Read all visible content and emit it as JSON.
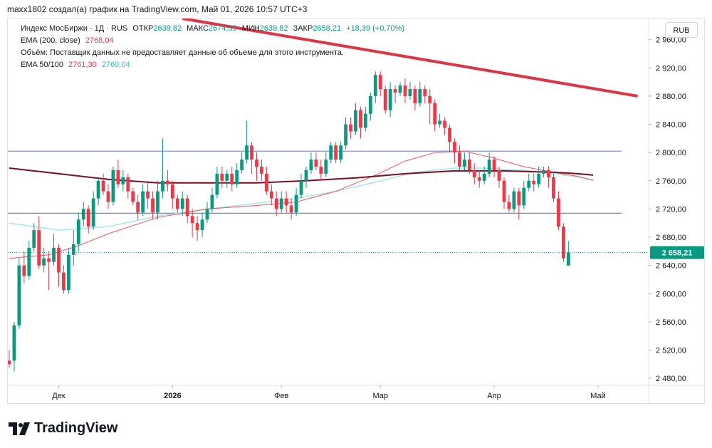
{
  "header": {
    "author_line": "maxx1802 создал(а) график на TradingView.com, Май 01, 2026 10:57 UTC+3"
  },
  "legend": {
    "symbol": "Индекс МосБиржи · 1Д · RUS",
    "open_label": "ОТКР",
    "open_value": "2639,82",
    "high_label": "МАКС",
    "high_value": "2674,59",
    "low_label": "МИН",
    "low_value": "2639,82",
    "close_label": "ЗАКР",
    "close_value": "2658,21",
    "change": "+18,39 (+0,70%)",
    "ema200_label": "EMA (200, close)",
    "ema200_value": "2768,04",
    "volume_note": "Объём: Поставщик данных не предоставляет данные об объеме для этого инструмента.",
    "ema50100_label": "EMA 50/100",
    "ema50_value": "2761,30",
    "ema100_value": "2760,04"
  },
  "currency_button": "RUB",
  "logo_text": "TradingView",
  "colors": {
    "up": "#089981",
    "down": "#f23645",
    "ema200": "#7b0d1e",
    "ema50": "#f7525f",
    "ema100": "#9fe6ee",
    "level_line": "#6f87c9",
    "trend_line": "#dc3545",
    "price_label_bg": "#089981"
  },
  "chart_data": {
    "type": "candlestick",
    "y_axis": {
      "min": 2470,
      "max": 2990,
      "side": "right",
      "ticks": [
        2480,
        2520,
        2560,
        2600,
        2640,
        2680,
        2720,
        2760,
        2800,
        2840,
        2880,
        2920,
        2960
      ],
      "tick_labels": [
        "2 480,00",
        "2 520,00",
        "2 560,00",
        "2 600,00",
        "2 640,00",
        "2 680,00",
        "2 720,00",
        "2 760,00",
        "2 800,00",
        "2 840,00",
        "2 880,00",
        "2 920,00",
        "2 960,00"
      ]
    },
    "x_axis": {
      "labels": [
        {
          "text": "Дек",
          "index": 10
        },
        {
          "text": "2026",
          "index": 33
        },
        {
          "text": "Фев",
          "index": 55
        },
        {
          "text": "Мар",
          "index": 75
        },
        {
          "text": "Апр",
          "index": 98
        },
        {
          "text": "Май",
          "index": 119
        }
      ],
      "total_slots": 127
    },
    "last_price_label": "2 658,21",
    "last_price": 2658.21,
    "horizontal_levels": [
      2802,
      2714
    ],
    "trend_line": {
      "start": {
        "index": 35,
        "price": 2990
      },
      "end": {
        "index": 127,
        "price": 2880
      }
    },
    "candles": [
      [
        2505,
        2500,
        2520,
        2495
      ],
      [
        2505,
        2555,
        2560,
        2490
      ],
      [
        2555,
        2640,
        2650,
        2550
      ],
      [
        2640,
        2625,
        2660,
        2615
      ],
      [
        2625,
        2665,
        2675,
        2620
      ],
      [
        2665,
        2690,
        2700,
        2660
      ],
      [
        2690,
        2640,
        2710,
        2635
      ],
      [
        2640,
        2650,
        2665,
        2630
      ],
      [
        2650,
        2645,
        2660,
        2605
      ],
      [
        2645,
        2665,
        2685,
        2640
      ],
      [
        2665,
        2630,
        2670,
        2610
      ],
      [
        2630,
        2605,
        2640,
        2600
      ],
      [
        2605,
        2655,
        2665,
        2600
      ],
      [
        2655,
        2670,
        2690,
        2640
      ],
      [
        2670,
        2705,
        2715,
        2660
      ],
      [
        2705,
        2720,
        2730,
        2695
      ],
      [
        2720,
        2695,
        2725,
        2685
      ],
      [
        2695,
        2735,
        2745,
        2690
      ],
      [
        2735,
        2760,
        2765,
        2725
      ],
      [
        2760,
        2745,
        2770,
        2740
      ],
      [
        2745,
        2730,
        2755,
        2720
      ],
      [
        2730,
        2775,
        2780,
        2725
      ],
      [
        2775,
        2755,
        2790,
        2750
      ],
      [
        2755,
        2765,
        2775,
        2745
      ],
      [
        2765,
        2745,
        2770,
        2735
      ],
      [
        2745,
        2730,
        2750,
        2725
      ],
      [
        2730,
        2715,
        2740,
        2705
      ],
      [
        2715,
        2745,
        2755,
        2710
      ],
      [
        2745,
        2735,
        2760,
        2720
      ],
      [
        2735,
        2715,
        2745,
        2705
      ],
      [
        2715,
        2745,
        2760,
        2705
      ],
      [
        2745,
        2760,
        2820,
        2735
      ],
      [
        2760,
        2755,
        2775,
        2745
      ],
      [
        2755,
        2735,
        2760,
        2720
      ],
      [
        2735,
        2720,
        2740,
        2715
      ],
      [
        2720,
        2735,
        2745,
        2710
      ],
      [
        2735,
        2710,
        2740,
        2700
      ],
      [
        2710,
        2700,
        2720,
        2680
      ],
      [
        2700,
        2690,
        2710,
        2675
      ],
      [
        2690,
        2705,
        2715,
        2680
      ],
      [
        2705,
        2720,
        2730,
        2700
      ],
      [
        2720,
        2740,
        2750,
        2715
      ],
      [
        2740,
        2770,
        2780,
        2735
      ],
      [
        2770,
        2760,
        2780,
        2750
      ],
      [
        2760,
        2770,
        2775,
        2750
      ],
      [
        2770,
        2755,
        2780,
        2745
      ],
      [
        2755,
        2775,
        2785,
        2750
      ],
      [
        2775,
        2790,
        2800,
        2770
      ],
      [
        2790,
        2810,
        2845,
        2785
      ],
      [
        2810,
        2790,
        2815,
        2770
      ],
      [
        2790,
        2780,
        2800,
        2760
      ],
      [
        2780,
        2770,
        2790,
        2760
      ],
      [
        2770,
        2745,
        2780,
        2740
      ],
      [
        2745,
        2735,
        2755,
        2725
      ],
      [
        2735,
        2720,
        2745,
        2710
      ],
      [
        2720,
        2735,
        2745,
        2715
      ],
      [
        2735,
        2725,
        2745,
        2715
      ],
      [
        2725,
        2715,
        2735,
        2705
      ],
      [
        2715,
        2740,
        2750,
        2710
      ],
      [
        2740,
        2760,
        2770,
        2735
      ],
      [
        2760,
        2775,
        2780,
        2750
      ],
      [
        2775,
        2790,
        2800,
        2770
      ],
      [
        2790,
        2780,
        2800,
        2775
      ],
      [
        2780,
        2770,
        2790,
        2760
      ],
      [
        2770,
        2790,
        2800,
        2765
      ],
      [
        2790,
        2810,
        2815,
        2785
      ],
      [
        2810,
        2790,
        2815,
        2785
      ],
      [
        2790,
        2810,
        2815,
        2785
      ],
      [
        2810,
        2840,
        2850,
        2805
      ],
      [
        2840,
        2830,
        2850,
        2820
      ],
      [
        2830,
        2860,
        2870,
        2825
      ],
      [
        2860,
        2835,
        2865,
        2820
      ],
      [
        2835,
        2855,
        2865,
        2830
      ],
      [
        2855,
        2880,
        2885,
        2845
      ],
      [
        2880,
        2910,
        2915,
        2870
      ],
      [
        2910,
        2890,
        2915,
        2880
      ],
      [
        2890,
        2860,
        2895,
        2855
      ],
      [
        2860,
        2890,
        2900,
        2850
      ],
      [
        2890,
        2885,
        2895,
        2870
      ],
      [
        2885,
        2895,
        2900,
        2880
      ],
      [
        2895,
        2880,
        2905,
        2870
      ],
      [
        2880,
        2890,
        2900,
        2875
      ],
      [
        2890,
        2870,
        2895,
        2860
      ],
      [
        2870,
        2890,
        2900,
        2865
      ],
      [
        2890,
        2880,
        2895,
        2870
      ],
      [
        2880,
        2870,
        2890,
        2840
      ],
      [
        2870,
        2840,
        2875,
        2830
      ],
      [
        2840,
        2845,
        2855,
        2835
      ],
      [
        2845,
        2835,
        2850,
        2825
      ],
      [
        2835,
        2815,
        2840,
        2800
      ],
      [
        2815,
        2800,
        2820,
        2785
      ],
      [
        2800,
        2780,
        2810,
        2775
      ],
      [
        2780,
        2790,
        2800,
        2775
      ],
      [
        2790,
        2775,
        2800,
        2770
      ],
      [
        2775,
        2765,
        2785,
        2755
      ],
      [
        2765,
        2760,
        2775,
        2750
      ],
      [
        2760,
        2770,
        2780,
        2755
      ],
      [
        2770,
        2790,
        2800,
        2765
      ],
      [
        2790,
        2775,
        2795,
        2765
      ],
      [
        2775,
        2760,
        2780,
        2750
      ],
      [
        2760,
        2730,
        2765,
        2720
      ],
      [
        2730,
        2720,
        2740,
        2715
      ],
      [
        2720,
        2745,
        2750,
        2715
      ],
      [
        2745,
        2725,
        2750,
        2705
      ],
      [
        2725,
        2750,
        2760,
        2720
      ],
      [
        2750,
        2760,
        2770,
        2745
      ],
      [
        2760,
        2755,
        2770,
        2745
      ],
      [
        2755,
        2770,
        2780,
        2750
      ],
      [
        2770,
        2775,
        2780,
        2765
      ],
      [
        2775,
        2765,
        2780,
        2750
      ],
      [
        2765,
        2735,
        2770,
        2730
      ],
      [
        2735,
        2695,
        2745,
        2690
      ],
      [
        2695,
        2650,
        2700,
        2645
      ],
      [
        2639.82,
        2658.21,
        2674.59,
        2639.82
      ]
    ],
    "ema200": [
      [
        0,
        2778
      ],
      [
        10,
        2770
      ],
      [
        20,
        2762
      ],
      [
        30,
        2757
      ],
      [
        40,
        2757
      ],
      [
        50,
        2757
      ],
      [
        60,
        2760
      ],
      [
        70,
        2764
      ],
      [
        80,
        2770
      ],
      [
        90,
        2774
      ],
      [
        100,
        2774
      ],
      [
        110,
        2772
      ],
      [
        115,
        2770
      ],
      [
        118,
        2768
      ]
    ],
    "ema50": [
      [
        0,
        2650
      ],
      [
        8,
        2655
      ],
      [
        14,
        2668
      ],
      [
        20,
        2685
      ],
      [
        30,
        2708
      ],
      [
        40,
        2720
      ],
      [
        50,
        2725
      ],
      [
        58,
        2730
      ],
      [
        66,
        2745
      ],
      [
        74,
        2768
      ],
      [
        80,
        2788
      ],
      [
        86,
        2800
      ],
      [
        92,
        2802
      ],
      [
        98,
        2792
      ],
      [
        104,
        2780
      ],
      [
        110,
        2772
      ],
      [
        115,
        2766
      ],
      [
        118,
        2761
      ]
    ],
    "ema100": [
      [
        0,
        2700
      ],
      [
        10,
        2690
      ],
      [
        20,
        2695
      ],
      [
        30,
        2710
      ],
      [
        40,
        2720
      ],
      [
        50,
        2728
      ],
      [
        58,
        2735
      ],
      [
        66,
        2745
      ],
      [
        74,
        2758
      ],
      [
        82,
        2772
      ],
      [
        90,
        2778
      ],
      [
        96,
        2778
      ],
      [
        104,
        2775
      ],
      [
        110,
        2770
      ],
      [
        115,
        2765
      ],
      [
        118,
        2760
      ]
    ]
  }
}
